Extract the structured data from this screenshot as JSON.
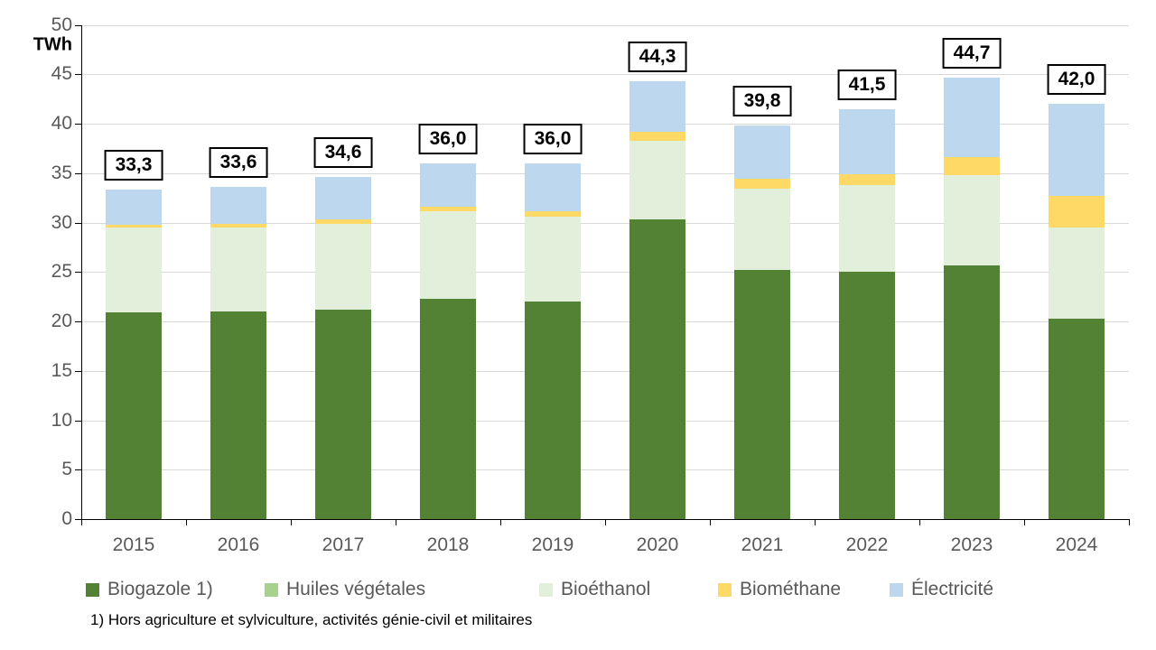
{
  "chart_data": {
    "type": "bar",
    "stacked": true,
    "title": "",
    "unit_label": "TWh",
    "categories": [
      "2015",
      "2016",
      "2017",
      "2018",
      "2019",
      "2020",
      "2021",
      "2022",
      "2023",
      "2024"
    ],
    "series": [
      {
        "name": "Biogazole 1)",
        "color": "#548235",
        "values": [
          20.9,
          21.0,
          21.2,
          22.3,
          22.0,
          30.3,
          25.2,
          25.0,
          25.7,
          20.3
        ]
      },
      {
        "name": "Huiles végétales",
        "color": "#a9d18e",
        "values": [
          0.0,
          0.0,
          0.0,
          0.0,
          0.0,
          0.0,
          0.0,
          0.0,
          0.0,
          0.0
        ]
      },
      {
        "name": "Bioéthanol",
        "color": "#e2efda",
        "values": [
          8.6,
          8.5,
          8.7,
          8.8,
          8.6,
          8.0,
          8.2,
          8.8,
          9.1,
          9.2
        ]
      },
      {
        "name": "Biométhane",
        "color": "#ffd966",
        "values": [
          0.3,
          0.4,
          0.4,
          0.5,
          0.5,
          0.9,
          1.0,
          1.1,
          1.8,
          3.2
        ]
      },
      {
        "name": "Électricité",
        "color": "#bdd7ee",
        "values": [
          3.5,
          3.7,
          4.3,
          4.4,
          4.9,
          5.1,
          5.4,
          6.6,
          8.1,
          9.3
        ]
      }
    ],
    "totals": [
      33.3,
      33.6,
      34.6,
      36.0,
      36.0,
      44.3,
      39.8,
      41.5,
      44.7,
      42.0
    ],
    "total_labels": [
      "33,3",
      "33,6",
      "34,6",
      "36,0",
      "36,0",
      "44,3",
      "39,8",
      "41,5",
      "44,7",
      "42,0"
    ],
    "xlabel": "",
    "ylabel": "TWh",
    "ylim": [
      0,
      50
    ],
    "y_ticks": [
      0,
      5,
      10,
      15,
      20,
      25,
      30,
      35,
      40,
      45,
      50
    ],
    "grid": true,
    "legend_position": "bottom",
    "footnote": "1) Hors agriculture et sylviculture, activités génie-civil et militaires"
  },
  "colors": {
    "axis_text": "#595959",
    "gridline": "#d9d9d9",
    "axis_line": "#000000",
    "label_box_border": "#000000",
    "label_box_bg": "#ffffff"
  }
}
